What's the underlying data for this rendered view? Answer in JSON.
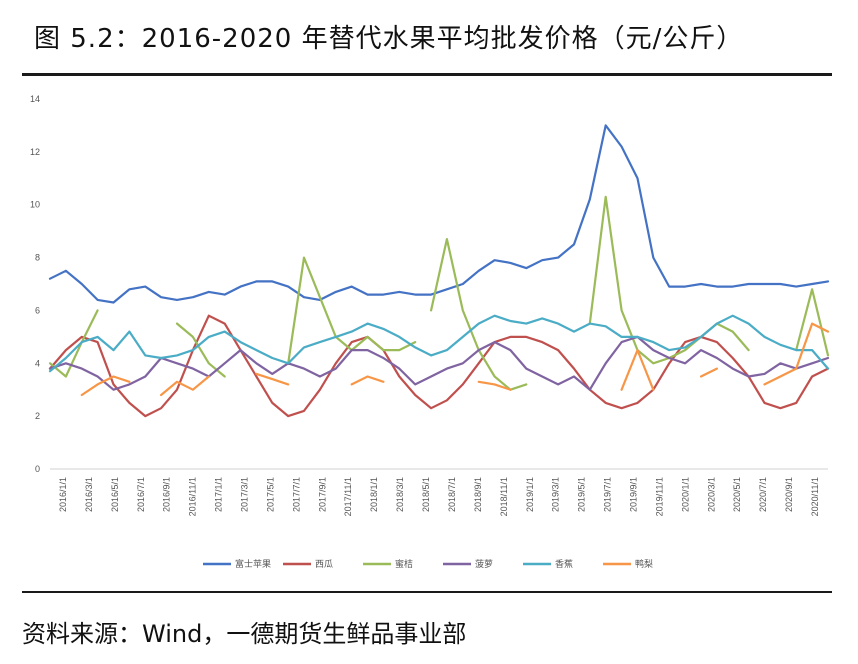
{
  "figure": {
    "title": "图 5.2：2016-2020 年替代水果平均批发价格（元/公斤）",
    "source": "资料来源：Wind，一德期货生鲜品事业部"
  },
  "chart_data": {
    "type": "line",
    "title": "",
    "xlabel": "",
    "ylabel": "",
    "ylim": [
      0,
      14
    ],
    "yticks": [
      0,
      2,
      4,
      6,
      8,
      10,
      12,
      14
    ],
    "grid": false,
    "legend_position": "bottom",
    "xtick_labels": [
      "2016/1/1",
      "2016/3/1",
      "2016/5/1",
      "2016/7/1",
      "2016/9/1",
      "2016/11/1",
      "2017/1/1",
      "2017/3/1",
      "2017/5/1",
      "2017/7/1",
      "2017/9/1",
      "2017/11/1",
      "2018/1/1",
      "2018/3/1",
      "2018/5/1",
      "2018/7/1",
      "2018/9/1",
      "2018/11/1",
      "2019/1/1",
      "2019/3/1",
      "2019/5/1",
      "2019/7/1",
      "2019/9/1",
      "2019/11/1",
      "2020/1/1",
      "2020/3/1",
      "2020/5/1",
      "2020/7/1",
      "2020/9/1",
      "2020/11/1"
    ],
    "series": [
      {
        "name": "富士苹果",
        "color": "#4472C4",
        "values": [
          7.2,
          7.5,
          7.0,
          6.4,
          6.3,
          6.8,
          6.9,
          6.5,
          6.4,
          6.5,
          6.7,
          6.6,
          6.9,
          7.1,
          7.1,
          6.9,
          6.5,
          6.4,
          6.7,
          6.9,
          6.6,
          6.6,
          6.7,
          6.6,
          6.6,
          6.8,
          7.0,
          7.5,
          7.9,
          7.8,
          7.6,
          7.9,
          8.0,
          8.5,
          10.2,
          13.0,
          12.2,
          11.0,
          8.0,
          6.9,
          6.9,
          7.0,
          6.9,
          6.9,
          7.0,
          7.0,
          7.0,
          6.9,
          7.0,
          7.1
        ],
        "segments": [
          [
            0,
            49
          ]
        ]
      },
      {
        "name": "西瓜",
        "color": "#C0504D",
        "values": [
          3.8,
          4.5,
          5.0,
          4.8,
          3.2,
          2.5,
          2.0,
          2.3,
          3.0,
          4.5,
          5.8,
          5.5,
          4.5,
          3.5,
          2.5,
          2.0,
          2.2,
          3.0,
          4.0,
          4.8,
          5.0,
          4.5,
          3.5,
          2.8,
          2.3,
          2.6,
          3.2,
          4.0,
          4.8,
          5.0,
          5.0,
          4.8,
          4.5,
          3.8,
          3.0,
          2.5,
          2.3,
          2.5,
          3.0,
          4.0,
          4.8,
          5.0,
          4.8,
          4.2,
          3.5,
          2.5,
          2.3,
          2.5,
          3.5,
          3.8
        ],
        "segments": [
          [
            0,
            49
          ]
        ]
      },
      {
        "name": "蜜桔",
        "color": "#9BBB59",
        "values": [
          4.0,
          3.5,
          4.8,
          6.0,
          5.0,
          4.5,
          4.0,
          4.2,
          5.5,
          5.0,
          4.0,
          3.5,
          3.0,
          3.5,
          3.8,
          4.0,
          8.0,
          6.5,
          5.0,
          4.5,
          5.0,
          4.5,
          4.5,
          4.8,
          6.0,
          8.7,
          6.0,
          4.5,
          3.5,
          3.0,
          3.2,
          3.5,
          3.5,
          4.0,
          5.5,
          10.3,
          6.0,
          4.5,
          4.0,
          4.2,
          4.5,
          5.0,
          5.5,
          5.2,
          4.5,
          4.0,
          4.0,
          4.5,
          6.8,
          4.3
        ],
        "segments": [
          [
            0,
            3
          ],
          [
            8,
            11
          ],
          [
            15,
            23
          ],
          [
            24,
            30
          ],
          [
            34,
            44
          ],
          [
            47,
            49
          ]
        ]
      },
      {
        "name": "菠萝",
        "color": "#8064A2",
        "values": [
          3.8,
          4.0,
          3.8,
          3.5,
          3.0,
          3.2,
          3.5,
          4.2,
          4.0,
          3.8,
          3.5,
          4.0,
          4.5,
          4.0,
          3.6,
          4.0,
          3.8,
          3.5,
          3.8,
          4.5,
          4.5,
          4.2,
          3.8,
          3.2,
          3.5,
          3.8,
          4.0,
          4.5,
          4.8,
          4.5,
          3.8,
          3.5,
          3.2,
          3.5,
          3.0,
          4.0,
          4.8,
          5.0,
          4.5,
          4.2,
          4.0,
          4.5,
          4.2,
          3.8,
          3.5,
          3.6,
          4.0,
          3.8,
          4.0,
          4.2
        ],
        "segments": [
          [
            0,
            49
          ]
        ]
      },
      {
        "name": "香蕉",
        "color": "#4BACC6",
        "values": [
          3.7,
          4.2,
          4.8,
          5.0,
          4.5,
          5.2,
          4.3,
          4.2,
          4.3,
          4.5,
          5.0,
          5.2,
          4.8,
          4.5,
          4.2,
          4.0,
          4.6,
          4.8,
          5.0,
          5.2,
          5.5,
          5.3,
          5.0,
          4.6,
          4.3,
          4.5,
          5.0,
          5.5,
          5.8,
          5.6,
          5.5,
          5.7,
          5.5,
          5.2,
          5.5,
          5.4,
          5.0,
          5.0,
          4.8,
          4.5,
          4.6,
          5.0,
          5.5,
          5.8,
          5.5,
          5.0,
          4.7,
          4.5,
          4.5,
          3.8
        ],
        "segments": [
          [
            0,
            49
          ]
        ]
      },
      {
        "name": "鸭梨",
        "color": "#F79646",
        "values": [
          3.2,
          3.0,
          2.8,
          3.2,
          3.5,
          3.3,
          3.0,
          2.8,
          3.3,
          3.0,
          3.5,
          3.8,
          3.8,
          3.6,
          3.4,
          3.2,
          3.2,
          3.4,
          3.4,
          3.2,
          3.5,
          3.3,
          3.1,
          3.3,
          3.2,
          3.5,
          3.4,
          3.3,
          3.2,
          3.0,
          3.0,
          3.0,
          3.1,
          3.0,
          3.0,
          3.0,
          3.0,
          4.5,
          3.0,
          2.8,
          3.0,
          3.5,
          3.8,
          3.5,
          3.3,
          3.2,
          3.5,
          3.8,
          5.5,
          5.2
        ],
        "segments": [
          [
            2,
            5
          ],
          [
            7,
            10
          ],
          [
            13,
            15
          ],
          [
            19,
            21
          ],
          [
            27,
            29
          ],
          [
            36,
            38
          ],
          [
            41,
            42
          ],
          [
            45,
            49
          ]
        ]
      }
    ]
  }
}
